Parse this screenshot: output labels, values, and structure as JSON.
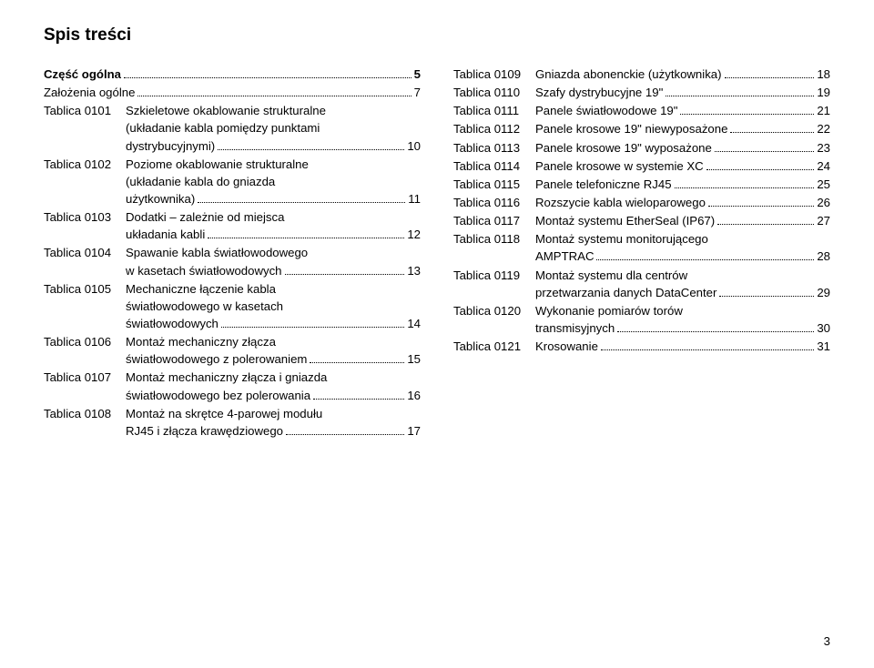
{
  "title": "Spis treści",
  "page_number": "3",
  "left": [
    {
      "label": "",
      "lines": [
        "Część ogólna"
      ],
      "page": "5",
      "bold": true
    },
    {
      "label": "",
      "lines": [
        "Założenia ogólne"
      ],
      "page": "7"
    },
    {
      "label": "Tablica 0101",
      "lines": [
        "Szkieletowe okablowanie strukturalne",
        "(układanie kabla pomiędzy punktami",
        "dystrybucyjnymi)"
      ],
      "page": "10"
    },
    {
      "label": "Tablica 0102",
      "lines": [
        "Poziome okablowanie strukturalne",
        "(układanie kabla do gniazda",
        "użytkownika)"
      ],
      "page": "11"
    },
    {
      "label": "Tablica 0103",
      "lines": [
        "Dodatki – zależnie od miejsca",
        "układania kabli"
      ],
      "page": "12"
    },
    {
      "label": "Tablica 0104",
      "lines": [
        "Spawanie kabla światłowodowego",
        "w kasetach światłowodowych"
      ],
      "page": "13"
    },
    {
      "label": "Tablica 0105",
      "lines": [
        "Mechaniczne łączenie kabla",
        "światłowodowego w kasetach",
        "światłowodowych"
      ],
      "page": "14"
    },
    {
      "label": "Tablica 0106",
      "lines": [
        "Montaż mechaniczny złącza",
        "światłowodowego z polerowaniem"
      ],
      "page": "15"
    },
    {
      "label": "Tablica 0107",
      "lines": [
        "Montaż mechaniczny złącza i gniazda",
        "światłowodowego bez polerowania"
      ],
      "page": "16"
    },
    {
      "label": "Tablica 0108",
      "lines": [
        "Montaż na skrętce 4-parowej modułu",
        "RJ45 i złącza krawędziowego"
      ],
      "page": "17"
    }
  ],
  "right": [
    {
      "label": "Tablica 0109",
      "lines": [
        "Gniazda abonenckie (użytkownika)"
      ],
      "page": "18"
    },
    {
      "label": "Tablica 0110",
      "lines": [
        "Szafy dystrybucyjne 19\""
      ],
      "page": "19"
    },
    {
      "label": "Tablica 0111",
      "lines": [
        "Panele światłowodowe 19\""
      ],
      "page": "21"
    },
    {
      "label": "Tablica 0112",
      "lines": [
        "Panele krosowe 19\" niewyposażone"
      ],
      "page": "22"
    },
    {
      "label": "Tablica 0113",
      "lines": [
        "Panele krosowe 19\" wyposażone"
      ],
      "page": "23"
    },
    {
      "label": "Tablica 0114",
      "lines": [
        "Panele krosowe w systemie XC"
      ],
      "page": "24"
    },
    {
      "label": "Tablica 0115",
      "lines": [
        "Panele telefoniczne RJ45"
      ],
      "page": "25"
    },
    {
      "label": "Tablica 0116",
      "lines": [
        "Rozszycie kabla wieloparowego"
      ],
      "page": "26"
    },
    {
      "label": "Tablica 0117",
      "lines": [
        "Montaż systemu EtherSeal (IP67)"
      ],
      "page": "27"
    },
    {
      "label": "Tablica 0118",
      "lines": [
        "Montaż systemu monitorującego",
        "AMPTRAC"
      ],
      "page": "28"
    },
    {
      "label": "Tablica 0119",
      "lines": [
        "Montaż systemu dla centrów",
        "przetwarzania danych DataCenter"
      ],
      "page": "29"
    },
    {
      "label": "Tablica 0120",
      "lines": [
        "Wykonanie pomiarów torów",
        "transmisyjnych"
      ],
      "page": "30"
    },
    {
      "label": "Tablica 0121",
      "lines": [
        "Krosowanie"
      ],
      "page": "31"
    }
  ]
}
